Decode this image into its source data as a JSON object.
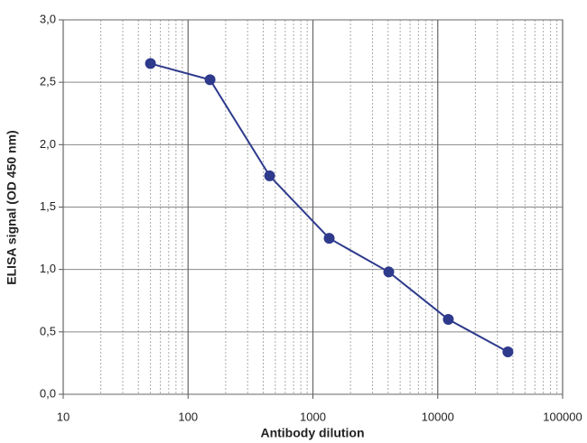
{
  "chart_data": {
    "type": "line",
    "x_label": "Antibody dilution",
    "y_label": "ELISA signal (OD 450 nm)",
    "x": [
      50,
      150,
      450,
      1350,
      4050,
      12150,
      36450
    ],
    "values": [
      2.65,
      2.52,
      1.75,
      1.25,
      0.98,
      0.6,
      0.34
    ],
    "color": "#2e3a8c",
    "x_log": true,
    "xlim": [
      10,
      100000
    ],
    "xticks": [
      10,
      100,
      1000,
      10000,
      100000
    ],
    "ylim": [
      0,
      3.0
    ],
    "yticks": [
      {
        "value": 0,
        "label": "0,0"
      },
      {
        "value": 0.5,
        "label": "0,5"
      },
      {
        "value": 1.0,
        "label": "1,0"
      },
      {
        "value": 1.5,
        "label": "1,5"
      },
      {
        "value": 2.0,
        "label": "2,0"
      },
      {
        "value": 2.5,
        "label": "2,5"
      },
      {
        "value": 3.0,
        "label": "3,0"
      }
    ],
    "grid": true,
    "minor_grid": true
  }
}
